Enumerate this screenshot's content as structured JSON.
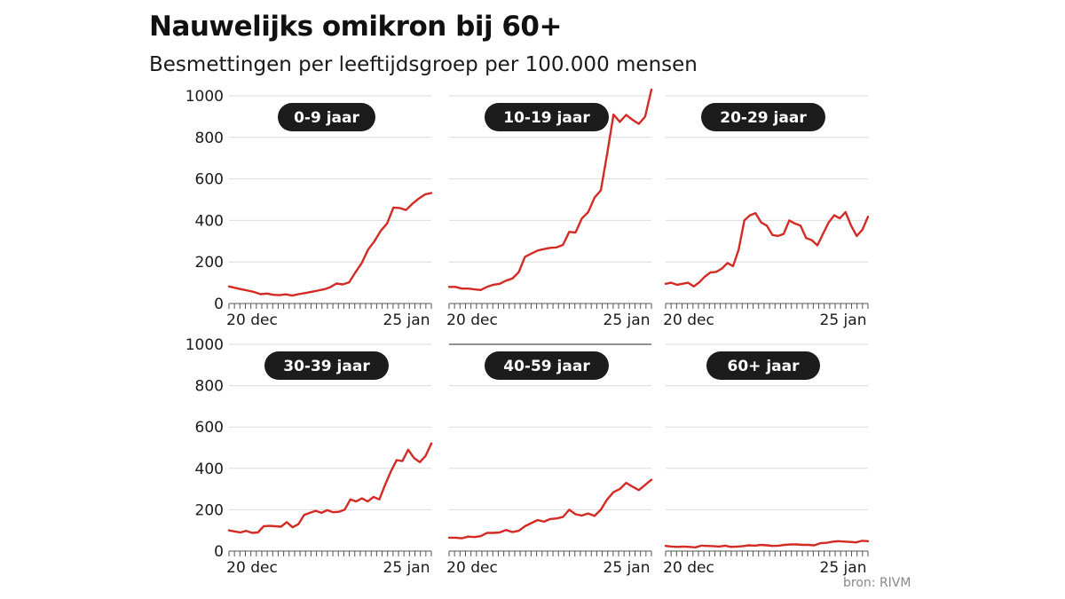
{
  "title": "Nauwelijks omikron bij 60+",
  "subtitle": "Besmettingen per leeftijdsgroep per 100.000 mensen",
  "source": "bron: RIVM",
  "colors": {
    "line": "#d32a24",
    "grid": "#dcdcdc",
    "pill": "#1c1c1c",
    "axis": "#555555"
  },
  "chart_data": [
    {
      "type": "line",
      "title": "0-9 jaar",
      "xlabel": "",
      "ylabel": "",
      "ylim": [
        0,
        1000
      ],
      "yticks": [
        0,
        200,
        400,
        600,
        800,
        1000
      ],
      "xtick_labels": [
        "20 dec",
        "25 jan"
      ],
      "values": [
        82,
        75,
        68,
        62,
        55,
        45,
        48,
        42,
        40,
        44,
        38,
        45,
        50,
        56,
        62,
        68,
        78,
        96,
        92,
        102,
        150,
        195,
        260,
        300,
        350,
        385,
        462,
        460,
        450,
        480,
        505,
        525,
        532
      ]
    },
    {
      "type": "line",
      "title": "10-19 jaar",
      "xlabel": "",
      "ylabel": "",
      "ylim": [
        0,
        1000
      ],
      "yticks": [
        0,
        200,
        400,
        600,
        800,
        1000
      ],
      "xtick_labels": [
        "20 dec",
        "25 jan"
      ],
      "values": [
        80,
        80,
        72,
        72,
        68,
        65,
        80,
        90,
        95,
        110,
        120,
        150,
        225,
        240,
        255,
        262,
        268,
        270,
        282,
        345,
        342,
        410,
        440,
        510,
        545,
        720,
        910,
        875,
        908,
        885,
        865,
        900,
        1030
      ]
    },
    {
      "type": "line",
      "title": "20-29 jaar",
      "xlabel": "",
      "ylabel": "",
      "ylim": [
        0,
        1000
      ],
      "yticks": [
        0,
        200,
        400,
        600,
        800,
        1000
      ],
      "xtick_labels": [
        "20 dec",
        "25 jan"
      ],
      "values": [
        95,
        100,
        90,
        95,
        100,
        82,
        102,
        130,
        150,
        152,
        168,
        195,
        180,
        260,
        400,
        425,
        435,
        390,
        375,
        330,
        325,
        335,
        400,
        385,
        375,
        315,
        305,
        280,
        335,
        390,
        425,
        410,
        440,
        375,
        325,
        355,
        418
      ]
    },
    {
      "type": "line",
      "title": "30-39 jaar",
      "xlabel": "",
      "ylabel": "",
      "ylim": [
        0,
        1000
      ],
      "yticks": [
        0,
        200,
        400,
        600,
        800,
        1000
      ],
      "xtick_labels": [
        "20 dec",
        "25 jan"
      ],
      "values": [
        100,
        95,
        90,
        98,
        88,
        90,
        120,
        122,
        120,
        118,
        140,
        115,
        130,
        175,
        185,
        195,
        185,
        198,
        188,
        190,
        200,
        250,
        240,
        255,
        240,
        262,
        250,
        320,
        385,
        440,
        435,
        490,
        450,
        430,
        460,
        520
      ]
    },
    {
      "type": "line",
      "title": "40-59 jaar",
      "xlabel": "",
      "ylabel": "",
      "ylim": [
        0,
        1000
      ],
      "yticks": [
        0,
        200,
        400,
        600,
        800,
        1000
      ],
      "xtick_labels": [
        "20 dec",
        "25 jan"
      ],
      "values": [
        65,
        65,
        62,
        70,
        68,
        72,
        88,
        88,
        90,
        102,
        92,
        98,
        120,
        135,
        150,
        142,
        155,
        158,
        165,
        200,
        178,
        172,
        182,
        170,
        200,
        250,
        285,
        300,
        330,
        312,
        295,
        320,
        345
      ]
    },
    {
      "type": "line",
      "title": "60+ jaar",
      "xlabel": "",
      "ylabel": "",
      "ylim": [
        0,
        1000
      ],
      "yticks": [
        0,
        200,
        400,
        600,
        800,
        1000
      ],
      "xtick_labels": [
        "20 dec",
        "25 jan"
      ],
      "values": [
        25,
        22,
        20,
        22,
        20,
        18,
        26,
        25,
        24,
        22,
        26,
        20,
        22,
        24,
        28,
        26,
        30,
        28,
        25,
        26,
        30,
        32,
        32,
        30,
        30,
        28,
        38,
        40,
        45,
        48,
        46,
        44,
        42,
        50,
        48
      ]
    }
  ]
}
